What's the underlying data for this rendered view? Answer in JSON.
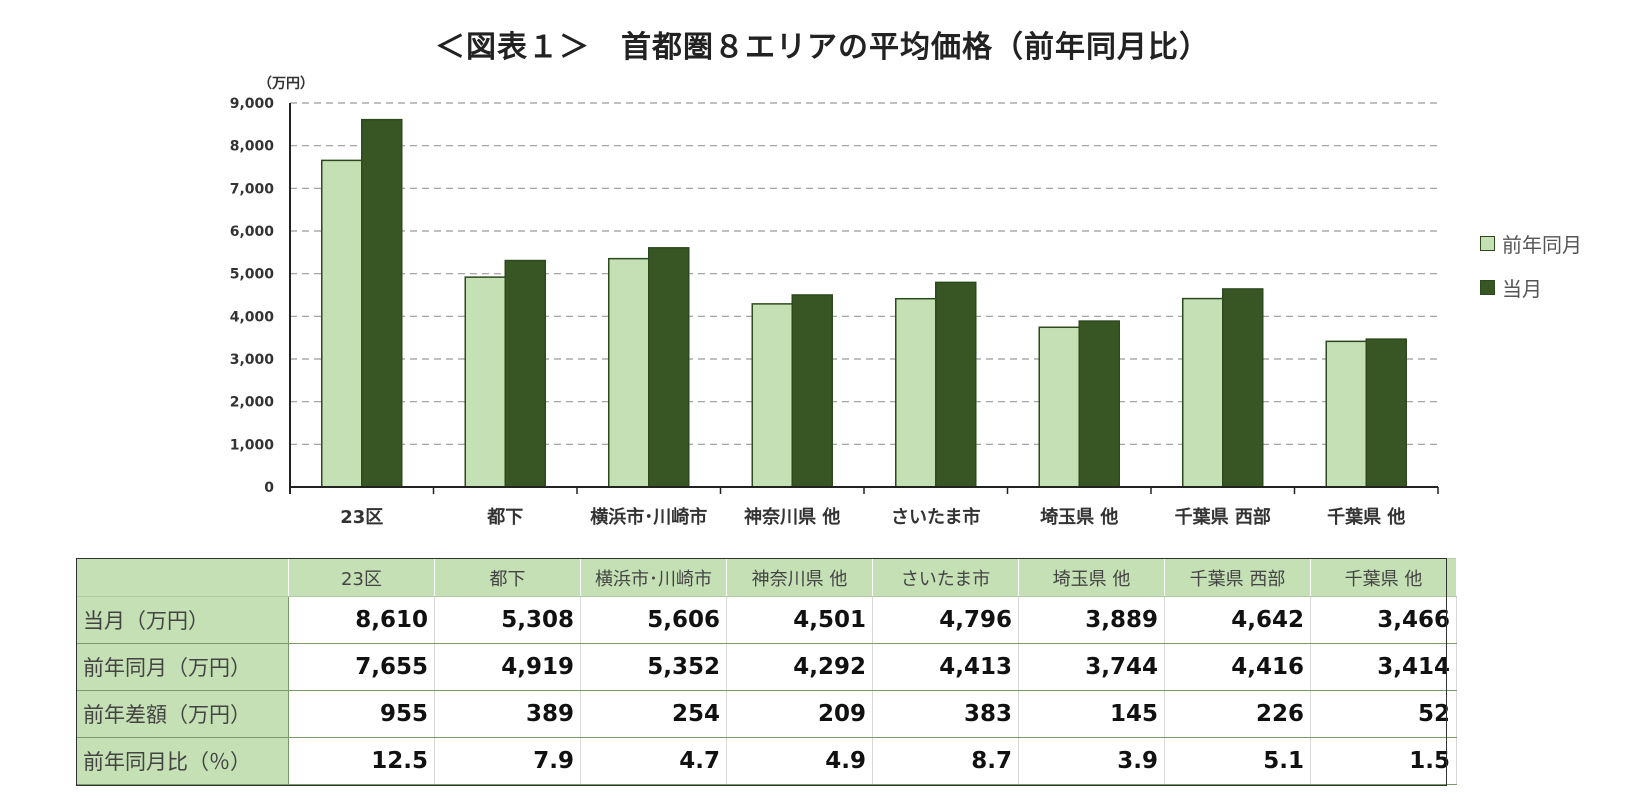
{
  "chart_data": {
    "type": "bar",
    "title": "＜図表１＞　首都圏８エリアの平均価格（前年同月比）",
    "ylabel": "（万円）",
    "ylim": [
      0,
      9000
    ],
    "yticks": [
      "0",
      "1,000",
      "2,000",
      "3,000",
      "4,000",
      "5,000",
      "6,000",
      "7,000",
      "8,000",
      "9,000"
    ],
    "ytick_values": [
      0,
      1000,
      2000,
      3000,
      4000,
      5000,
      6000,
      7000,
      8000,
      9000
    ],
    "grid": true,
    "legend_position": "right",
    "categories": [
      "23区",
      "都下",
      "横浜市･川崎市",
      "神奈川県 他",
      "さいたま市",
      "埼玉県 他",
      "千葉県 西部",
      "千葉県 他"
    ],
    "series": [
      {
        "name": "前年同月",
        "color": "#c4e0b4",
        "values": [
          7655,
          4919,
          5352,
          4292,
          4413,
          3744,
          4416,
          3414
        ]
      },
      {
        "name": "当月",
        "color": "#375623",
        "values": [
          8610,
          5308,
          5606,
          4501,
          4796,
          3889,
          4642,
          3466
        ]
      }
    ]
  },
  "table": {
    "columns": [
      "23区",
      "都下",
      "横浜市･川崎市",
      "神奈川県 他",
      "さいたま市",
      "埼玉県 他",
      "千葉県 西部",
      "千葉県 他"
    ],
    "rows": [
      {
        "label": "当月（万円）",
        "values": [
          "8,610",
          "5,308",
          "5,606",
          "4,501",
          "4,796",
          "3,889",
          "4,642",
          "3,466"
        ]
      },
      {
        "label": "前年同月（万円）",
        "values": [
          "7,655",
          "4,919",
          "5,352",
          "4,292",
          "4,413",
          "3,744",
          "4,416",
          "3,414"
        ]
      },
      {
        "label": "前年差額（万円）",
        "values": [
          "955",
          "389",
          "254",
          "209",
          "383",
          "145",
          "226",
          "52"
        ]
      },
      {
        "label": "前年同月比（％）",
        "values": [
          "12.5",
          "7.9",
          "4.7",
          "4.9",
          "8.7",
          "3.9",
          "5.1",
          "1.5"
        ]
      }
    ]
  }
}
